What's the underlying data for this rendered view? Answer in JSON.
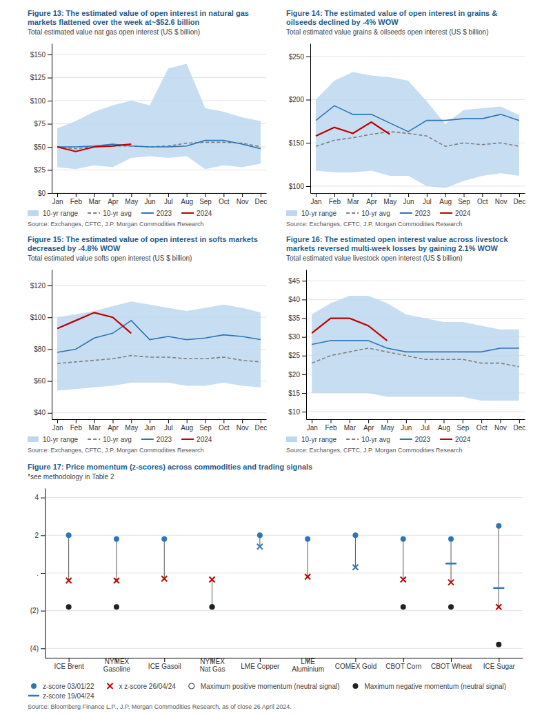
{
  "chart_data": [
    {
      "type": "line",
      "title": "Figure 13: The estimated value of open interest in natural gas markets flattened over the week at~$52.6 billion",
      "subtitle": "Total estimated value nat gas open interest (US $ billion)",
      "annotations": [
        "Source: Exchanges, CFTC, J.P. Morgan Commodities Research"
      ],
      "categories": [
        "Jan",
        "Feb",
        "Mar",
        "Apr",
        "May",
        "Jun",
        "Jul",
        "Aug",
        "Sep",
        "Oct",
        "Nov",
        "Dec"
      ],
      "series": [
        {
          "name": "10-yr range",
          "type": "area",
          "color": "#BDD7EE",
          "lower": [
            28,
            26,
            30,
            28,
            38,
            40,
            38,
            40,
            26,
            30,
            28,
            32
          ],
          "values": [
            70,
            78,
            88,
            95,
            100,
            95,
            135,
            140,
            92,
            88,
            82,
            78
          ]
        },
        {
          "name": "10-yr avg",
          "color": "#7F7F7F",
          "line_style": "dashed",
          "values": [
            50,
            48,
            50,
            51,
            51,
            50,
            51,
            54,
            55,
            55,
            54,
            50
          ]
        },
        {
          "name": "2023",
          "color": "#2E75B6",
          "line_style": "solid",
          "values": [
            50,
            50,
            51,
            53,
            51,
            50,
            50,
            51,
            57,
            57,
            53,
            48
          ]
        },
        {
          "name": "2024",
          "color": "#C00000",
          "line_style": "solid",
          "values": [
            50,
            45,
            50,
            51,
            53,
            null,
            null,
            null,
            null,
            null,
            null,
            null
          ]
        }
      ],
      "ylim": [
        0,
        162
      ],
      "yticks": [
        {
          "value": 0,
          "label": "$0"
        },
        {
          "value": 25,
          "label": "$25"
        },
        {
          "value": 50,
          "label": "$50"
        },
        {
          "value": 75,
          "label": "$75"
        },
        {
          "value": 100,
          "label": "$100"
        },
        {
          "value": 125,
          "label": "$125"
        },
        {
          "value": 150,
          "label": "$150"
        }
      ],
      "grid": true,
      "legend": "bottom"
    },
    {
      "type": "line",
      "title": "Figure 14: The estimated value of open interest in grains & oilseeds declined by -4% WOW",
      "subtitle": "Total estimated value grains & oilseeds open interest (US $ billion)",
      "annotations": [
        "Source: Exchanges, CFTC, J.P. Morgan Commodities Research"
      ],
      "categories": [
        "Jan",
        "Feb",
        "Mar",
        "Apr",
        "May",
        "Jun",
        "Jul",
        "Aug",
        "Sep",
        "Oct",
        "Nov",
        "Dec"
      ],
      "series": [
        {
          "name": "10-yr range",
          "type": "area",
          "color": "#BDD7EE",
          "lower": [
            118,
            116,
            116,
            118,
            112,
            112,
            100,
            98,
            106,
            112,
            115,
            112
          ],
          "values": [
            200,
            222,
            232,
            228,
            226,
            222,
            198,
            172,
            188,
            190,
            192,
            182
          ]
        },
        {
          "name": "10-yr avg",
          "color": "#7F7F7F",
          "line_style": "dashed",
          "values": [
            146,
            153,
            156,
            160,
            163,
            161,
            158,
            146,
            150,
            148,
            150,
            146
          ]
        },
        {
          "name": "2023",
          "color": "#2E75B6",
          "line_style": "solid",
          "values": [
            176,
            193,
            183,
            183,
            173,
            163,
            176,
            176,
            178,
            178,
            183,
            176
          ]
        },
        {
          "name": "2024",
          "color": "#C00000",
          "line_style": "solid",
          "values": [
            158,
            168,
            161,
            174,
            160,
            null,
            null,
            null,
            null,
            null,
            null,
            null
          ]
        }
      ],
      "ylim": [
        92,
        265
      ],
      "yticks": [
        {
          "value": 100,
          "label": "$100"
        },
        {
          "value": 150,
          "label": "$150"
        },
        {
          "value": 200,
          "label": "$200"
        },
        {
          "value": 250,
          "label": "$250"
        }
      ],
      "grid": true,
      "legend": "bottom"
    },
    {
      "type": "line",
      "title": "Figure 15: The estimated value of open interest in softs markets decreased by -4.8% WOW",
      "subtitle": "Total estimated value softs open interest (US $ billion)",
      "annotations": [
        "Source: Exchanges, CFTC, J.P. Morgan Commodities Research"
      ],
      "categories": [
        "Jan",
        "Feb",
        "Mar",
        "Apr",
        "May",
        "Jun",
        "Jul",
        "Aug",
        "Sep",
        "Oct",
        "Nov",
        "Dec"
      ],
      "series": [
        {
          "name": "10-yr range",
          "type": "area",
          "color": "#BDD7EE",
          "lower": [
            54,
            55,
            56,
            57,
            59,
            59,
            59,
            57,
            57,
            59,
            57,
            56
          ],
          "values": [
            100,
            102,
            104,
            107,
            110,
            108,
            106,
            104,
            106,
            108,
            106,
            103
          ]
        },
        {
          "name": "10-yr avg",
          "color": "#7F7F7F",
          "line_style": "dashed",
          "values": [
            71,
            72,
            73,
            74,
            76,
            75,
            75,
            74,
            74,
            75,
            73,
            72
          ]
        },
        {
          "name": "2023",
          "color": "#2E75B6",
          "line_style": "solid",
          "values": [
            78,
            80,
            87,
            90,
            98,
            86,
            88,
            86,
            87,
            89,
            88,
            86
          ]
        },
        {
          "name": "2024",
          "color": "#C00000",
          "line_style": "solid",
          "values": [
            93,
            98,
            103,
            100,
            90,
            null,
            null,
            null,
            null,
            null,
            null,
            null
          ]
        }
      ],
      "ylim": [
        36,
        130
      ],
      "yticks": [
        {
          "value": 40,
          "label": "$40"
        },
        {
          "value": 60,
          "label": "$60"
        },
        {
          "value": 80,
          "label": "$80"
        },
        {
          "value": 100,
          "label": "$100"
        },
        {
          "value": 120,
          "label": "$120"
        }
      ],
      "grid": true,
      "legend": "bottom"
    },
    {
      "type": "line",
      "title": "Figure 16: The estimated open interest value across livestock markets reversed multi-week losses by gaining 2.1% WOW",
      "subtitle": "Total estimated value livestock open interest (US $ billion)",
      "annotations": [
        "Source: Exchanges, CFTC, J.P. Morgan Commodities Research"
      ],
      "categories": [
        "Jan",
        "Feb",
        "Mar",
        "Apr",
        "May",
        "Jun",
        "Jul",
        "Aug",
        "Sep",
        "Oct",
        "Nov",
        "Dec"
      ],
      "series": [
        {
          "name": "10-yr range",
          "type": "area",
          "color": "#BDD7EE",
          "lower": [
            15,
            15,
            15,
            15,
            14,
            14,
            14,
            14,
            14,
            13,
            13,
            13
          ],
          "values": [
            36,
            39,
            41,
            41,
            39,
            36,
            35,
            34,
            34,
            33,
            32,
            32
          ]
        },
        {
          "name": "10-yr avg",
          "color": "#7F7F7F",
          "line_style": "dashed",
          "values": [
            23,
            25,
            26,
            27,
            26,
            25,
            24,
            24,
            24,
            23,
            23,
            22
          ]
        },
        {
          "name": "2023",
          "color": "#2E75B6",
          "line_style": "solid",
          "values": [
            28,
            29,
            29,
            29,
            27,
            26,
            26,
            26,
            26,
            26,
            27,
            27
          ]
        },
        {
          "name": "2024",
          "color": "#C00000",
          "line_style": "solid",
          "values": [
            31,
            35,
            35,
            33,
            29,
            null,
            null,
            null,
            null,
            null,
            null,
            null
          ]
        }
      ],
      "ylim": [
        8,
        48
      ],
      "yticks": [
        {
          "value": 10,
          "label": "$10"
        },
        {
          "value": 15,
          "label": "$15"
        },
        {
          "value": 20,
          "label": "$20"
        },
        {
          "value": 25,
          "label": "$25"
        },
        {
          "value": 30,
          "label": "$30"
        },
        {
          "value": 35,
          "label": "$35"
        },
        {
          "value": 40,
          "label": "$40"
        },
        {
          "value": 45,
          "label": "$45"
        }
      ],
      "grid": true,
      "legend": "bottom"
    },
    {
      "type": "dot",
      "title": "Figure 17: Price momentum (z-scores) across commodities and trading signals",
      "subtitle": "*see methodology in Table 2",
      "annotations": [
        "Source: Bloomberg Finance L.P., J.P. Morgan Commodities Research, as of close 26 April 2024."
      ],
      "categories": [
        "ICE Brent",
        "NYMEX Gasoline",
        "ICE Gasoil",
        "NYMEX Nat Gas",
        "LME Copper",
        "LME Aluminium",
        "COMEX Gold",
        "CBOT Corn",
        "CBOT Wheat",
        "ICE Sugar"
      ],
      "series": [
        {
          "name": "z-score 03/01/22",
          "color": "#2E75B6",
          "marker": "circle",
          "values": [
            2.0,
            1.8,
            1.8,
            -1.8,
            2.0,
            1.8,
            2.0,
            1.8,
            1.8,
            2.5
          ]
        },
        {
          "name": "x z-score 26/04/24",
          "color": "#C00000",
          "colors": [
            "#C00000",
            "#C00000",
            "#C00000",
            "#C00000",
            "#2E75B6",
            "#C00000",
            "#2E75B6",
            "#C00000",
            "#C00000",
            "#C00000"
          ],
          "marker": "x",
          "values": [
            -0.4,
            -0.4,
            -0.3,
            -0.35,
            1.4,
            -0.2,
            0.3,
            -0.35,
            -0.5,
            -1.8
          ]
        },
        {
          "name": "Maximum positive momentum (neutral signal)",
          "color": "#404040",
          "marker": "circle-open",
          "values": [
            null,
            null,
            null,
            null,
            null,
            null,
            null,
            null,
            null,
            null
          ]
        },
        {
          "name": "Maximum negative momentum (neutral signal)",
          "color": "#222222",
          "marker": "circle",
          "values": [
            -1.8,
            -1.8,
            null,
            -1.8,
            null,
            null,
            null,
            -1.8,
            -1.8,
            -3.8
          ]
        },
        {
          "name": "z-score 19/04/24",
          "color": "#2E75B6",
          "marker": "dash",
          "values": [
            null,
            null,
            null,
            null,
            null,
            null,
            null,
            null,
            0.5,
            -0.8
          ]
        }
      ],
      "ylim": [
        -4.5,
        4.5
      ],
      "yticks": [
        4,
        2,
        {
          "value": 0,
          "label": "."
        },
        {
          "value": -2,
          "label": "(2)"
        },
        {
          "value": -4,
          "label": "(4)"
        }
      ],
      "grid": true,
      "legend": "bottom"
    }
  ]
}
